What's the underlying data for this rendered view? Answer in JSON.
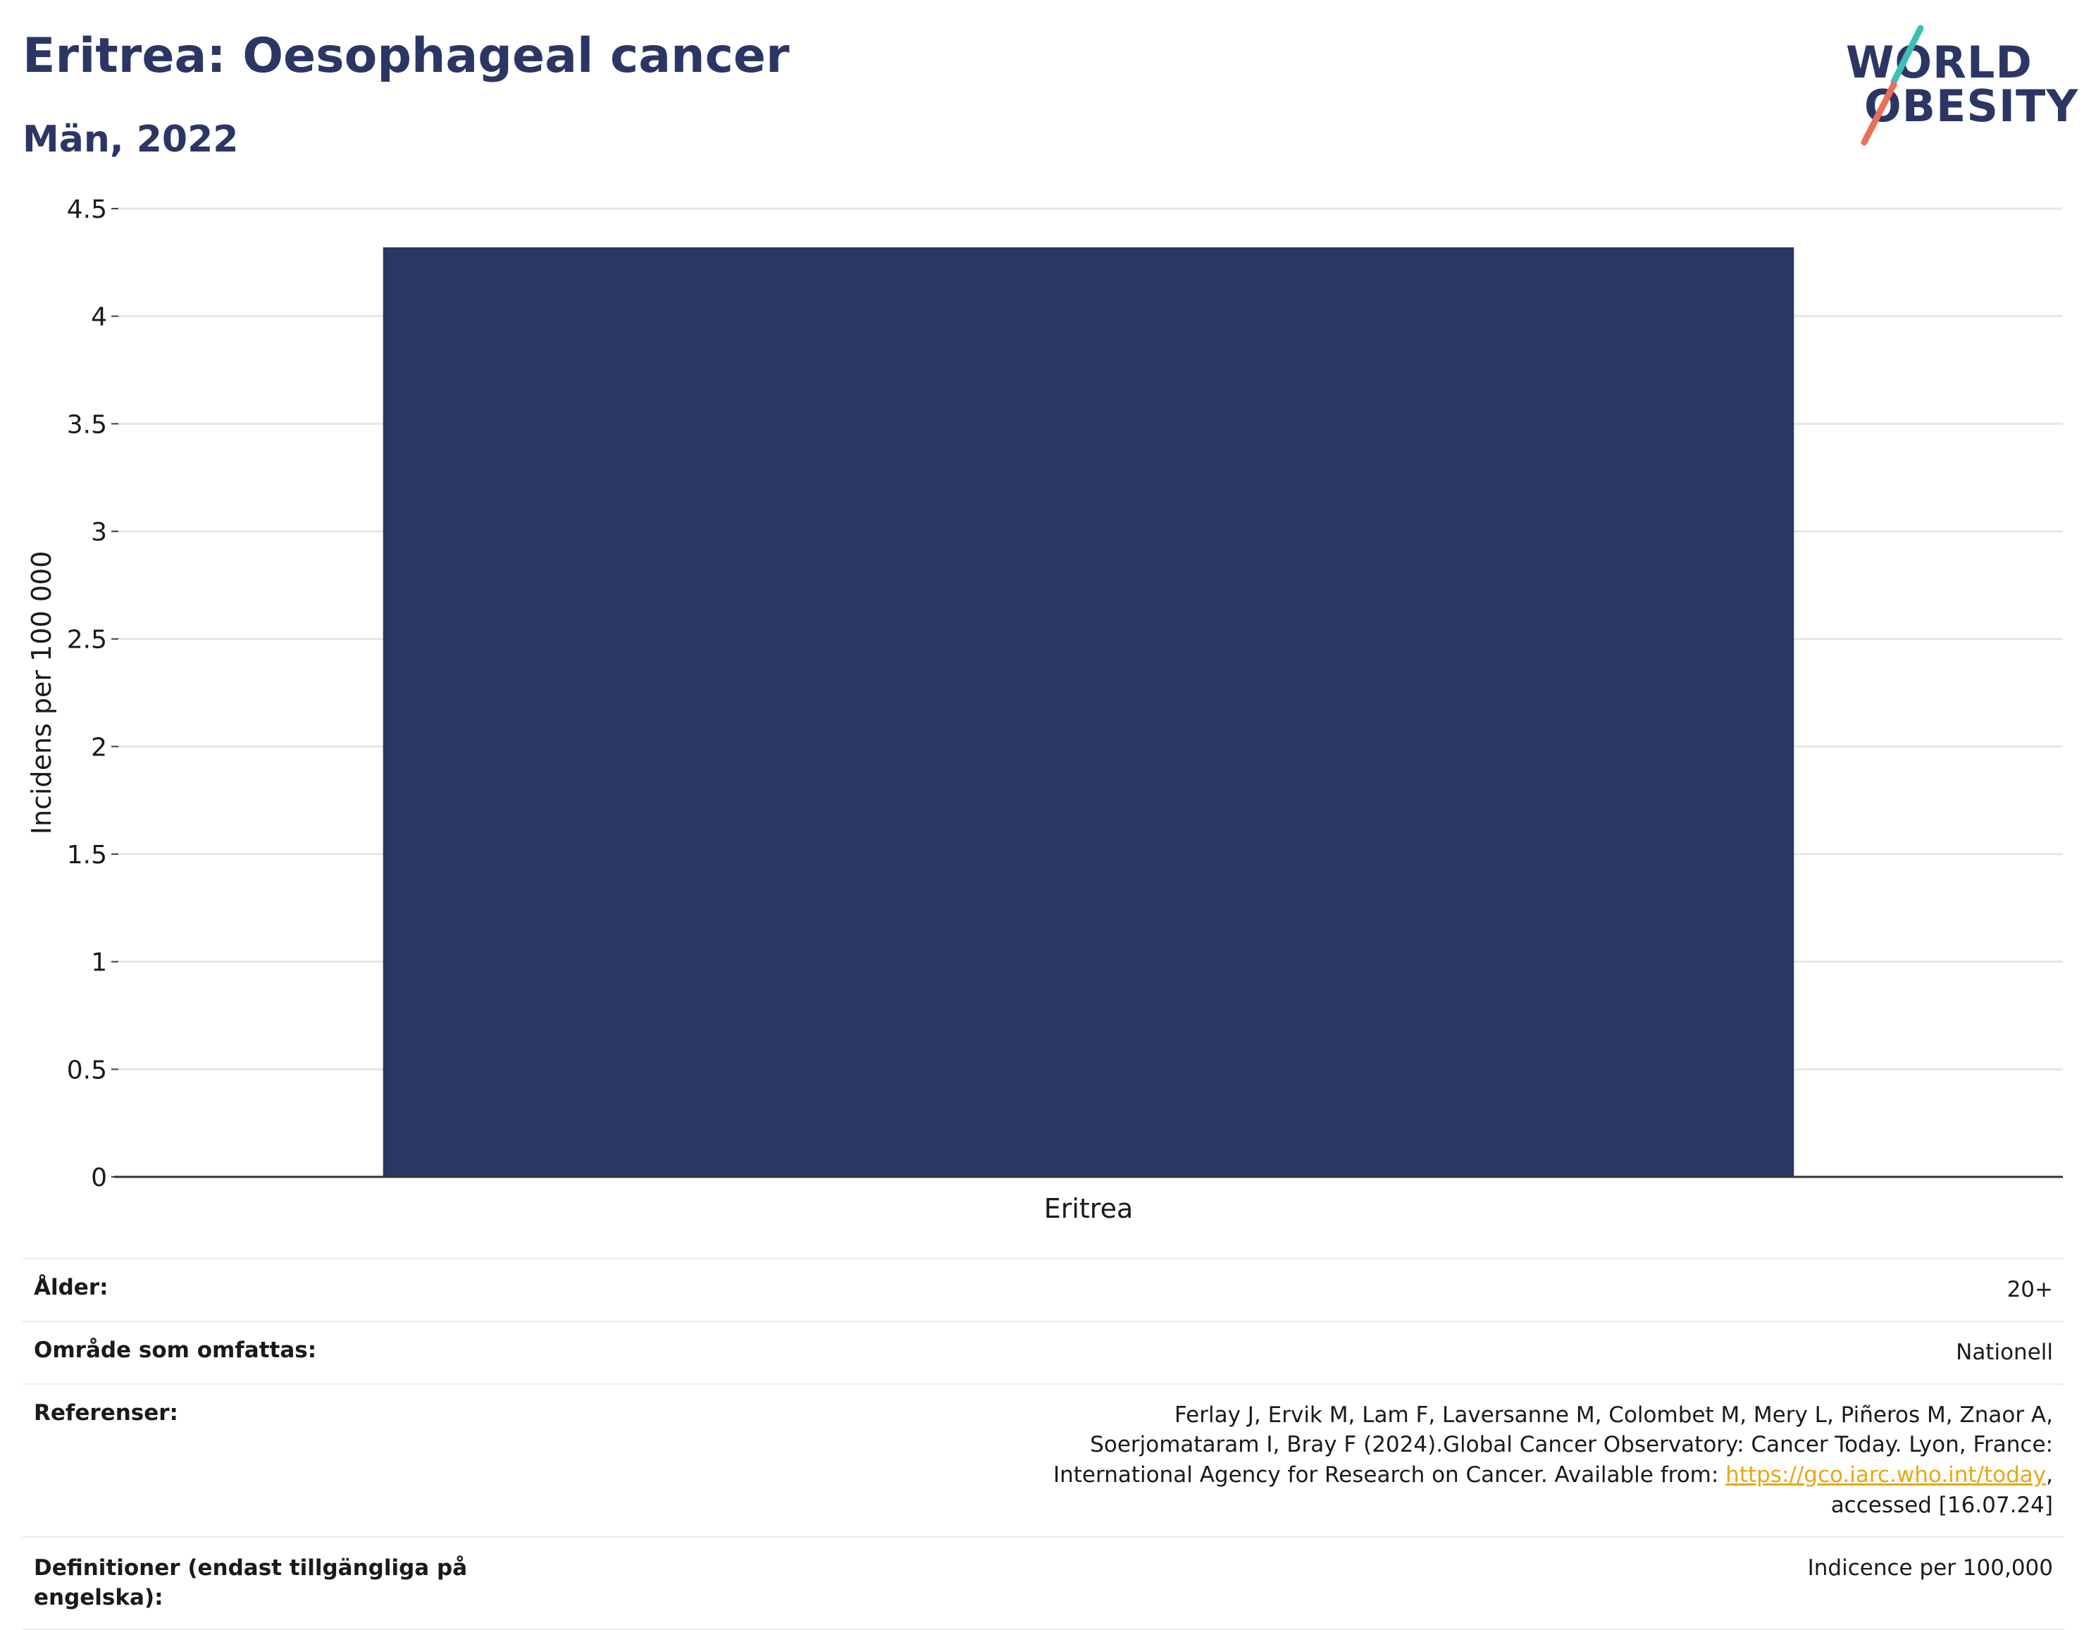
{
  "title": "Eritrea: Oesophageal cancer",
  "subtitle": "Män, 2022",
  "logo": {
    "line1": "WORLD",
    "line2": "OBESITY"
  },
  "chart_data": {
    "type": "bar",
    "categories": [
      "Eritrea"
    ],
    "values": [
      4.32
    ],
    "ylabel": "Incidens per 100 000",
    "ylim": [
      0,
      4.5
    ],
    "yticks": [
      0,
      0.5,
      1,
      1.5,
      2,
      2.5,
      3,
      3.5,
      4,
      4.5
    ],
    "ytick_labels": [
      "0",
      "0.5",
      "1",
      "1.5",
      "2",
      "2.5",
      "3",
      "3.5",
      "4",
      "4.5"
    ],
    "grid": true,
    "bar_color": "#2b3664"
  },
  "info": {
    "age_label": "Ålder:",
    "age_value": "20+",
    "area_label": "Område som omfattas:",
    "area_value": "Nationell",
    "ref_label": "Referenser:",
    "ref_text_1": "Ferlay J, Ervik M, Lam F, Laversanne M, Colombet M, Mery L, Piñeros M, Znaor A, Soerjomataram I, Bray F (2024).Global Cancer Observatory: Cancer Today. Lyon, France: International Agency for Research on Cancer. Available from: ",
    "ref_link": "https://gco.iarc.who.int/today",
    "ref_text_2": ", accessed [16.07.24]",
    "def_label": "Definitioner (endast tillgängliga på engelska):",
    "def_value": "Indicence per 100,000"
  },
  "colors": {
    "accent": "#2b3664",
    "link": "#e6a817",
    "logo_teal": "#3cbfb4",
    "logo_coral": "#e8705a"
  }
}
